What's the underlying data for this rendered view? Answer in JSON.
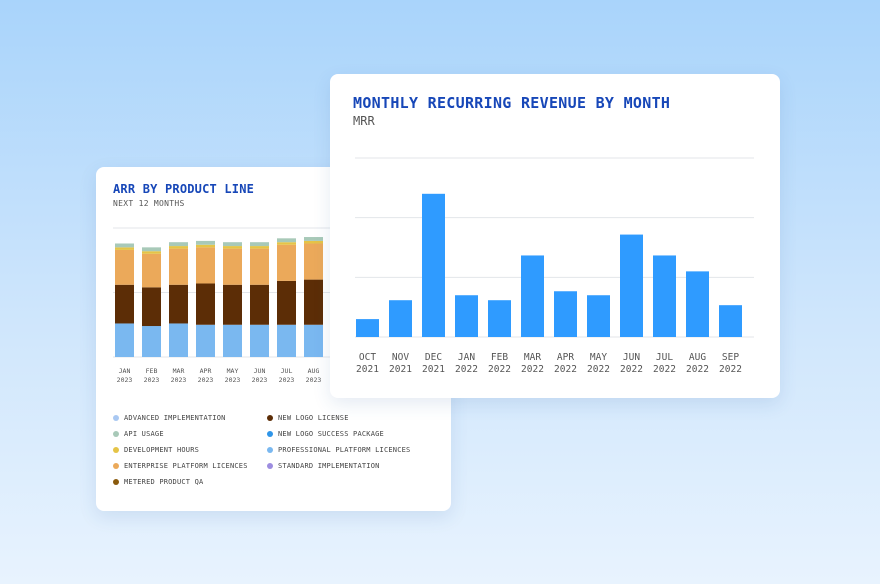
{
  "arr_card": {
    "title": "ARR BY PRODUCT LINE",
    "subtitle": "NEXT 12 MONTHS",
    "legend": [
      {
        "label": "ADVANCED IMPLEMENTATION",
        "color": "#a9c8f2"
      },
      {
        "label": "NEW LOGO LICENSE",
        "color": "#5c2d06"
      },
      {
        "label": "API USAGE",
        "color": "#a8c9b8"
      },
      {
        "label": "NEW LOGO SUCCESS PACKAGE",
        "color": "#2f95e8"
      },
      {
        "label": "DEVELOPMENT HOURS",
        "color": "#e5c447"
      },
      {
        "label": "PROFESSIONAL PLATFORM LICENCES",
        "color": "#7ab8f0"
      },
      {
        "label": "ENTERPRISE PLATFORM LICENCES",
        "color": "#eba95a"
      },
      {
        "label": "STANDARD IMPLEMENTATION",
        "color": "#9d8de0"
      },
      {
        "label": "METERED PRODUCT QA",
        "color": "#8a5a0c"
      }
    ]
  },
  "mrr_card": {
    "title": "MONTHLY RECURRING REVENUE BY MONTH",
    "subtitle": "MRR"
  },
  "chart_data": [
    {
      "type": "bar",
      "stacked": true,
      "title": "ARR BY PRODUCT LINE",
      "subtitle": "NEXT 12 MONTHS",
      "categories": [
        "JAN 2023",
        "FEB 2023",
        "MAR 2023",
        "APR 2023",
        "MAY 2023",
        "JUN 2023",
        "JUL 2023",
        "AUG 2023"
      ],
      "ylim": [
        0,
        100
      ],
      "grid": true,
      "series": [
        {
          "name": "PROFESSIONAL PLATFORM LICENCES",
          "color": "#7ab8f0",
          "values": [
            26,
            24,
            26,
            25,
            25,
            25,
            25,
            25
          ]
        },
        {
          "name": "NEW LOGO LICENSE",
          "color": "#5c2d06",
          "values": [
            30,
            30,
            30,
            32,
            31,
            31,
            34,
            35
          ]
        },
        {
          "name": "ENTERPRISE PLATFORM LICENCES",
          "color": "#eba95a",
          "values": [
            27,
            26,
            28,
            28,
            28,
            28,
            28,
            28
          ]
        },
        {
          "name": "DEVELOPMENT HOURS",
          "color": "#e5c447",
          "values": [
            2,
            2,
            2,
            2,
            2,
            2,
            2,
            2
          ]
        },
        {
          "name": "API USAGE",
          "color": "#a8c9b8",
          "values": [
            3,
            3,
            3,
            3,
            3,
            3,
            3,
            3
          ]
        }
      ]
    },
    {
      "type": "bar",
      "title": "MONTHLY RECURRING REVENUE BY MONTH",
      "subtitle": "MRR",
      "categories": [
        "OCT 2021",
        "NOV 2021",
        "DEC 2021",
        "JAN 2022",
        "FEB 2022",
        "MAR 2022",
        "APR 2022",
        "MAY 2022",
        "JUN 2022",
        "JUL 2022",
        "AUG 2022",
        "SEP 2022"
      ],
      "values": [
        9,
        18.5,
        72,
        21,
        18.5,
        41,
        23,
        21,
        51.5,
        41,
        33,
        16
      ],
      "ylim": [
        0,
        90
      ],
      "grid": true,
      "color": "#2f9bff"
    }
  ]
}
